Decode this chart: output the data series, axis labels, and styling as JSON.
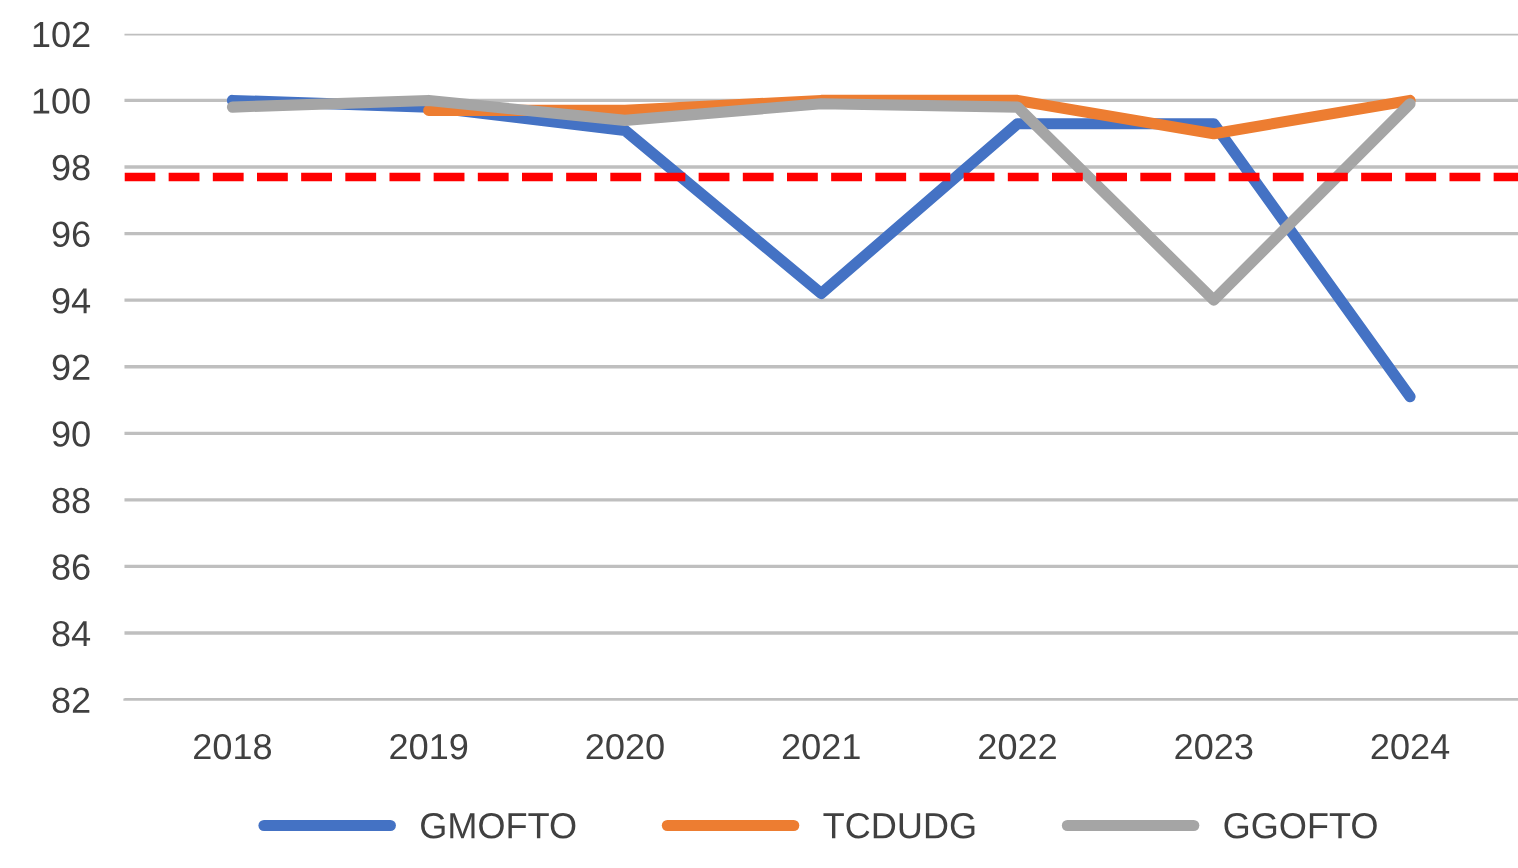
{
  "chart_data": {
    "type": "line",
    "categories": [
      "2018",
      "2019",
      "2020",
      "2021",
      "2022",
      "2023",
      "2024"
    ],
    "series": [
      {
        "name": "GMOFTO",
        "color": "#4472c4",
        "values": [
          100.0,
          99.8,
          99.1,
          94.2,
          99.3,
          99.3,
          91.1
        ]
      },
      {
        "name": "TCDUDG",
        "color": "#ed7d31",
        "values": [
          null,
          99.7,
          99.7,
          100.0,
          100.0,
          99.0,
          100.0
        ]
      },
      {
        "name": "GGOFTO",
        "color": "#a5a5a5",
        "values": [
          99.8,
          100.0,
          99.4,
          99.9,
          99.8,
          94.0,
          99.9
        ]
      }
    ],
    "ylim": [
      82,
      102
    ],
    "yticks": [
      82,
      84,
      86,
      88,
      90,
      92,
      94,
      96,
      98,
      100,
      102
    ],
    "ref_lines": [
      {
        "axis": "y",
        "value": 97.7,
        "color": "#ff0000",
        "line_style": "dashed"
      }
    ],
    "grid": "y",
    "legend": "bottom",
    "marker": "none",
    "line_style": "solid"
  }
}
